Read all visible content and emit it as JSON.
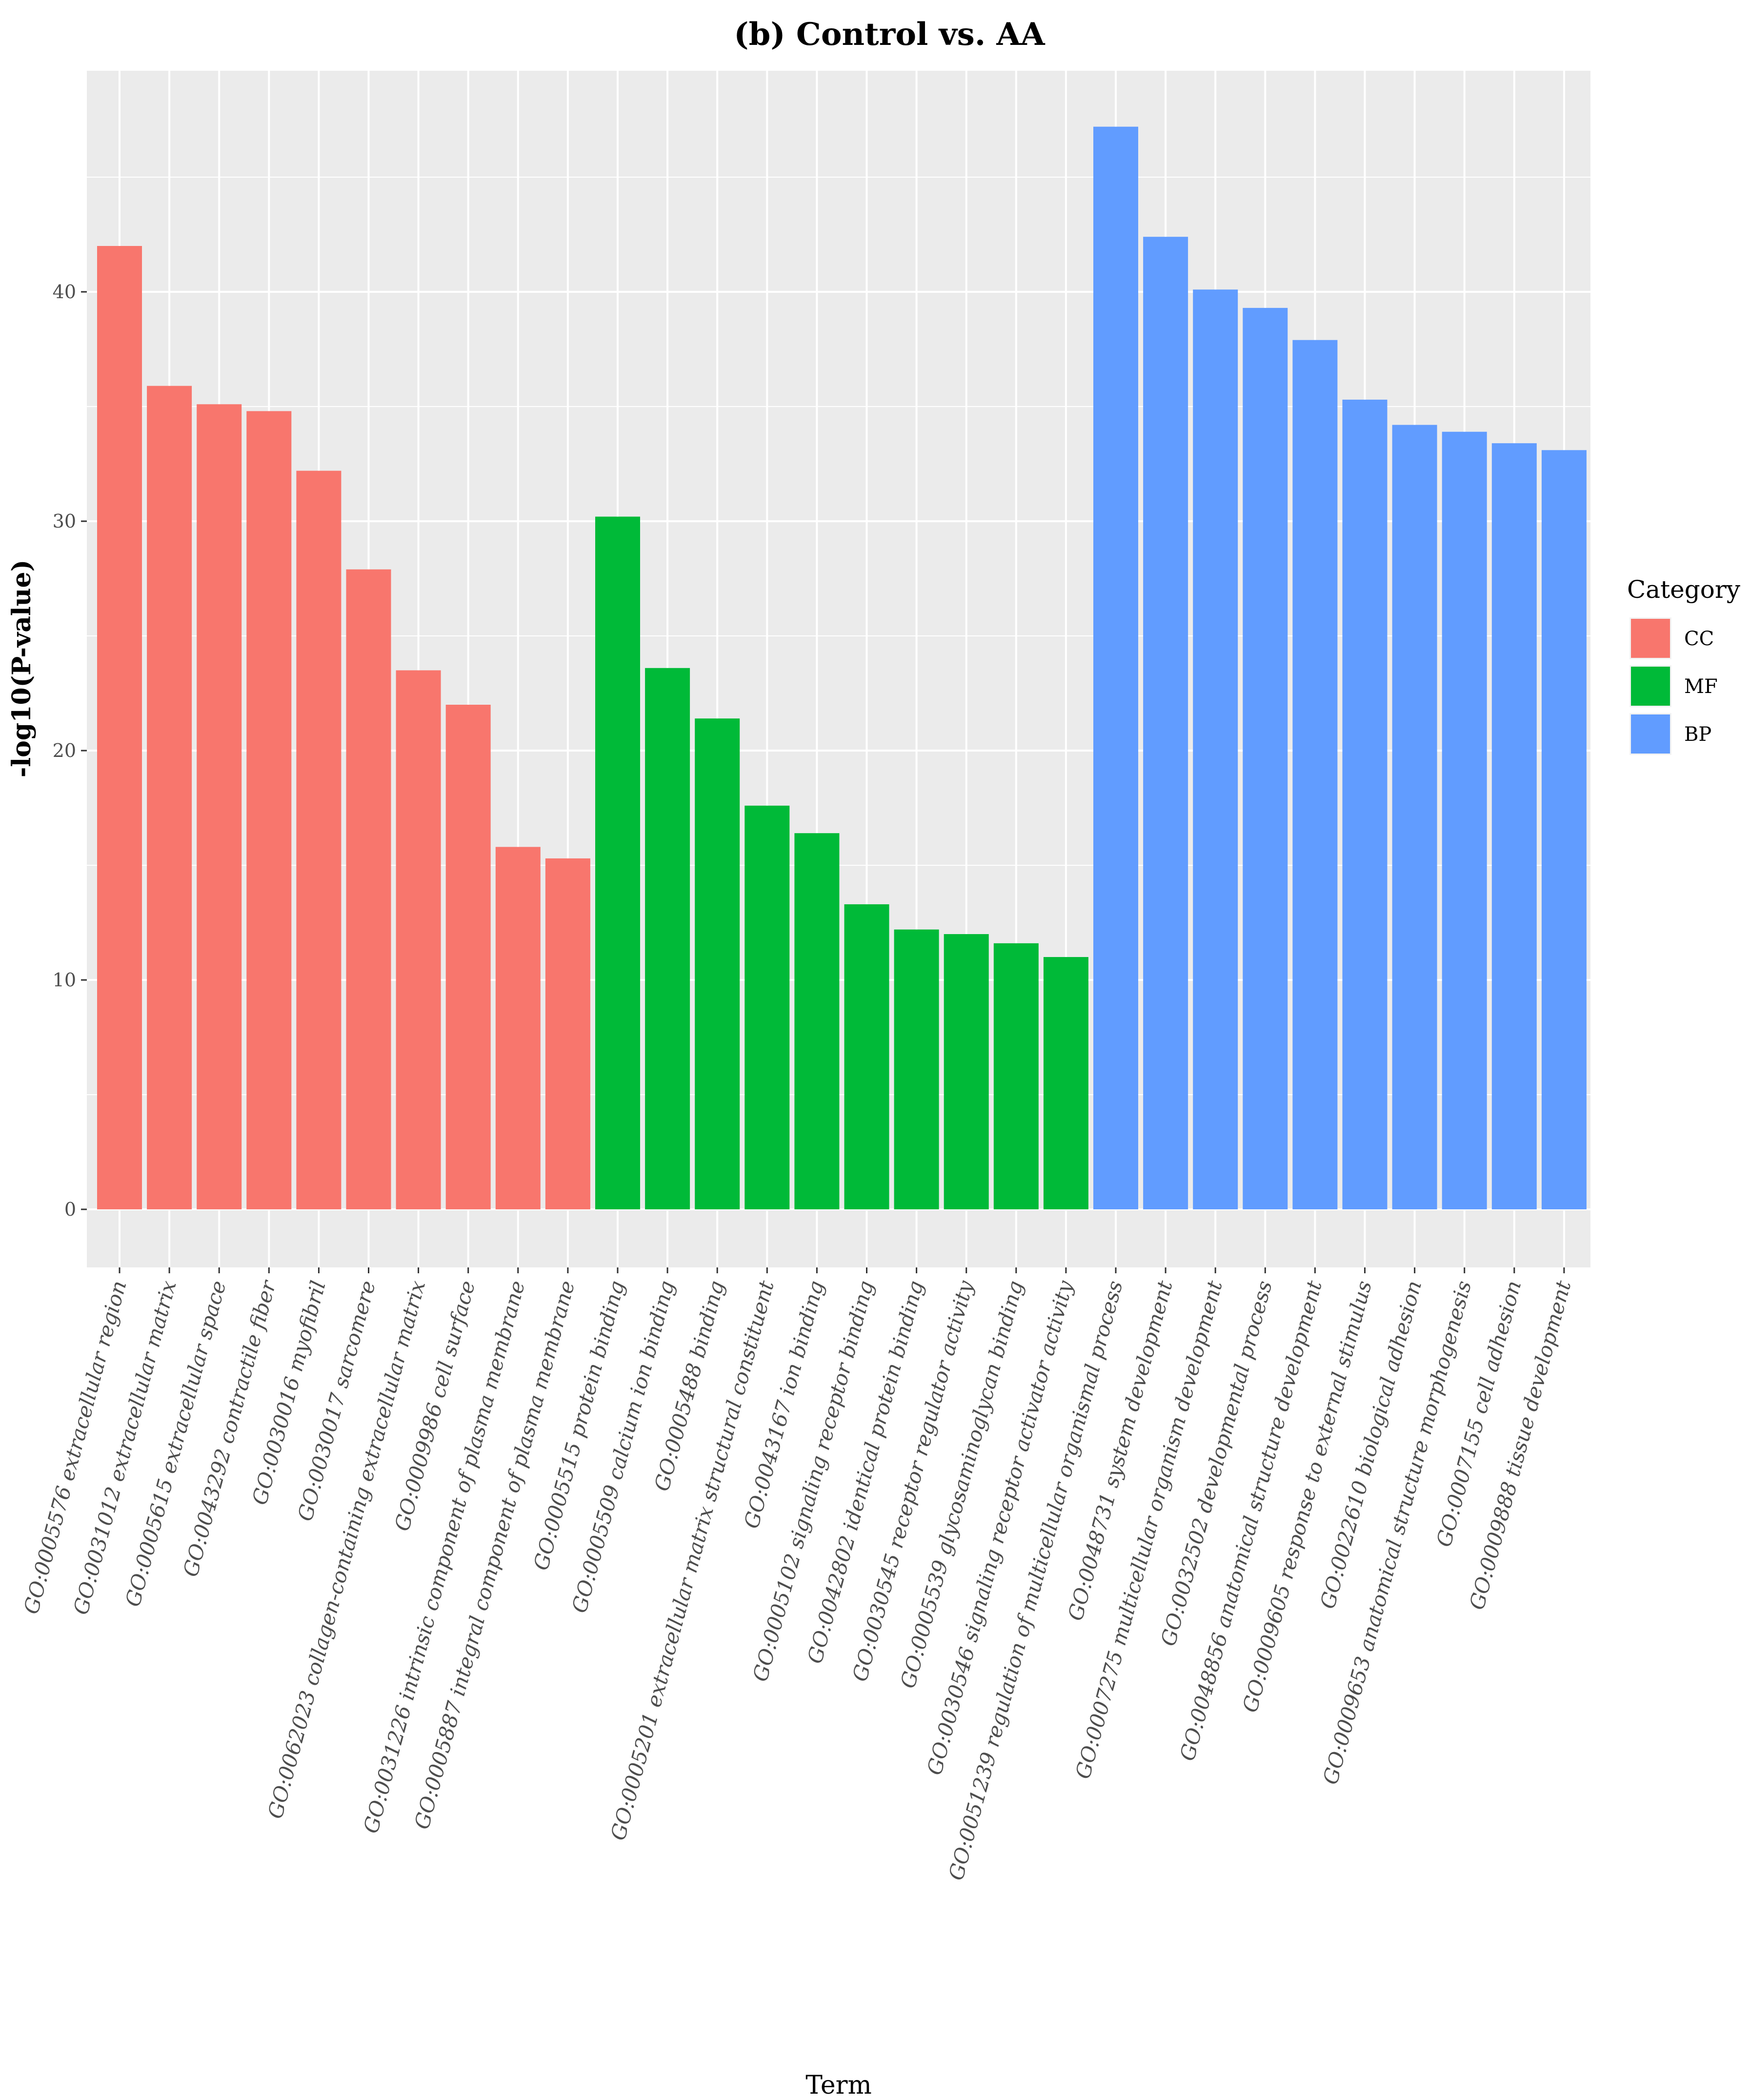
{
  "chart_data": {
    "type": "bar",
    "title": "(b) Control vs. AA",
    "xlabel": "Term",
    "ylabel": "-log10(P-value)",
    "ylim": [
      -2.2,
      50
    ],
    "yticks": [
      0,
      10,
      20,
      30,
      40
    ],
    "grid": true,
    "legend": {
      "title": "Category",
      "position": "right",
      "entries": [
        {
          "name": "CC",
          "color": "#F8766D"
        },
        {
          "name": "MF",
          "color": "#00BA38"
        },
        {
          "name": "BP",
          "color": "#619CFF"
        }
      ]
    },
    "categories": [
      "GO:0005576 extracellular region",
      "GO:0031012 extracellular matrix",
      "GO:0005615 extracellular space",
      "GO:0043292 contractile fiber",
      "GO:0030016 myofibril",
      "GO:0030017 sarcomere",
      "GO:0062023 collagen-containing extracellular matrix",
      "GO:0009986 cell surface",
      "GO:0031226 intrinsic component of plasma membrane",
      "GO:0005887 integral component of plasma membrane",
      "GO:0005515 protein binding",
      "GO:0005509 calcium ion binding",
      "GO:0005488 binding",
      "GO:0005201 extracellular matrix structural constituent",
      "GO:0043167 ion binding",
      "GO:0005102 signaling receptor binding",
      "GO:0042802 identical protein binding",
      "GO:0030545 receptor regulator activity",
      "GO:0005539 glycosaminoglycan binding",
      "GO:0030546 signaling receptor activator activity",
      "GO:0051239 regulation of multicellular organismal process",
      "GO:0048731 system development",
      "GO:0007275 multicellular organism development",
      "GO:0032502 developmental process",
      "GO:0048856 anatomical structure development",
      "GO:0009605 response to external stimulus",
      "GO:0022610 biological adhesion",
      "GO:0009653 anatomical structure morphogenesis",
      "GO:0007155 cell adhesion",
      "GO:0009888 tissue development"
    ],
    "values": [
      42.0,
      35.9,
      35.1,
      34.8,
      32.2,
      27.9,
      23.5,
      22.0,
      15.8,
      15.3,
      30.2,
      23.6,
      21.4,
      17.6,
      16.4,
      13.3,
      12.2,
      12.0,
      11.6,
      11.0,
      47.2,
      42.4,
      40.1,
      39.3,
      37.9,
      35.3,
      34.2,
      33.9,
      33.4,
      33.1
    ],
    "bar_categories": [
      "CC",
      "CC",
      "CC",
      "CC",
      "CC",
      "CC",
      "CC",
      "CC",
      "CC",
      "CC",
      "MF",
      "MF",
      "MF",
      "MF",
      "MF",
      "MF",
      "MF",
      "MF",
      "MF",
      "MF",
      "BP",
      "BP",
      "BP",
      "BP",
      "BP",
      "BP",
      "BP",
      "BP",
      "BP",
      "BP"
    ]
  }
}
